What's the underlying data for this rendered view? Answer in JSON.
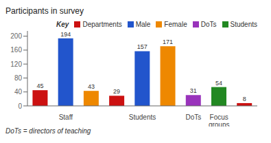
{
  "chart_data": {
    "type": "bar",
    "title": "Participants in survey",
    "annotations": [
      "DoTs = directors of teaching"
    ],
    "legend_title": "Key",
    "legend": "top",
    "data_labels": true,
    "grid": false,
    "categories": [
      null,
      "Staff",
      null,
      null,
      "Students",
      null,
      "DoTs",
      "Focus groups",
      null
    ],
    "series": [
      {
        "name": "Departments",
        "color": "#cc1111",
        "values": [
          45,
          null,
          null,
          29,
          null,
          null,
          null,
          null,
          8
        ]
      },
      {
        "name": "Male",
        "color": "#2255cc",
        "values": [
          null,
          194,
          null,
          null,
          157,
          null,
          null,
          null,
          null
        ]
      },
      {
        "name": "Female",
        "color": "#ee8800",
        "values": [
          null,
          null,
          43,
          null,
          null,
          171,
          null,
          null,
          null
        ]
      },
      {
        "name": "DoTs",
        "color": "#9933bb",
        "values": [
          null,
          null,
          null,
          null,
          null,
          null,
          31,
          null,
          null
        ]
      },
      {
        "name": "Students",
        "color": "#228822",
        "values": [
          null,
          null,
          null,
          null,
          null,
          null,
          null,
          54,
          null
        ]
      }
    ],
    "ylim": [
      0,
      215
    ],
    "yticks": [
      0,
      40,
      80,
      120,
      160,
      200
    ]
  }
}
